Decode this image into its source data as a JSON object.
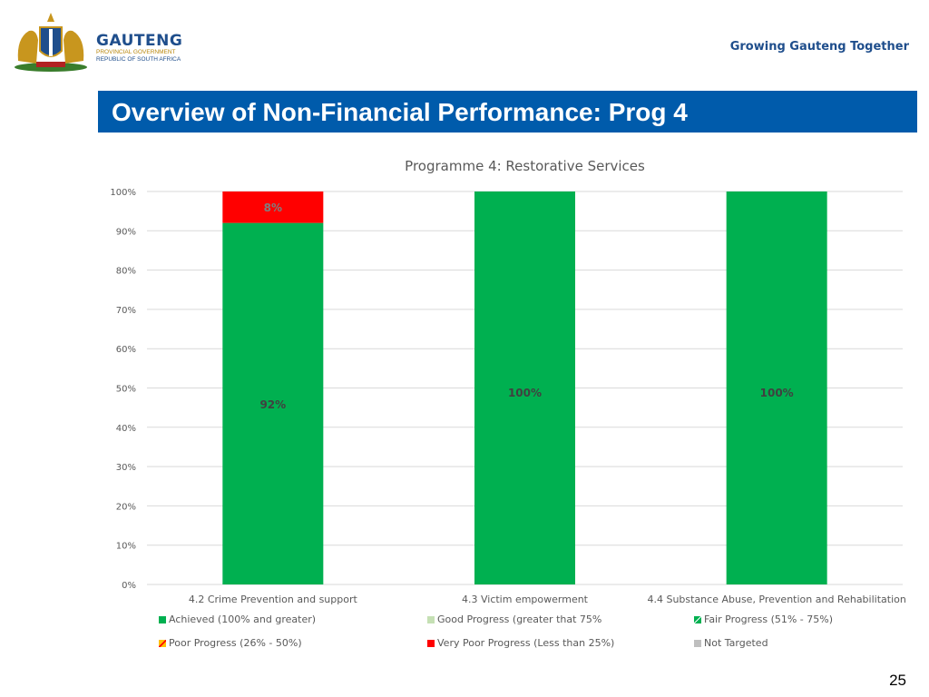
{
  "header": {
    "logo_title": "GAUTENG",
    "logo_sub1": "PROVINCIAL GOVERNMENT",
    "logo_sub2": "REPUBLIC OF SOUTH AFRICA",
    "tagline": "Growing Gauteng Together"
  },
  "slide": {
    "title": "Overview of Non-Financial Performance: Prog 4",
    "page_number": "25"
  },
  "colors": {
    "achieved": "#00b050",
    "very_poor": "#ff0000",
    "good": "#c5e0b4",
    "not_targeted": "#bfbfbf",
    "title_bar": "#005bab"
  },
  "chart_data": {
    "type": "bar",
    "stacked": true,
    "title": "Programme 4: Restorative Services",
    "categories": [
      "4.2 Crime Prevention and support",
      "4.3 Victim empowerment",
      "4.4 Substance Abuse, Prevention and Rehabilitation"
    ],
    "series": [
      {
        "name": "Achieved (100%  and greater)",
        "values": [
          92,
          100,
          100
        ],
        "labels": [
          "92%",
          "100%",
          "100%"
        ]
      },
      {
        "name": "Very Poor Progress (Less than 25%)",
        "values": [
          8,
          0,
          0
        ],
        "labels": [
          "8%",
          "",
          ""
        ]
      }
    ],
    "yticks": [
      "0%",
      "10%",
      "20%",
      "30%",
      "40%",
      "50%",
      "60%",
      "70%",
      "80%",
      "90%",
      "100%"
    ],
    "ylim": [
      0,
      100
    ],
    "grid": true,
    "legend_position": "bottom",
    "legend": [
      "Achieved (100%  and greater)",
      "Good Progress (greater that 75%",
      "Fair Progress (51% - 75%)",
      "Poor Progress (26% - 50%)",
      "Very Poor Progress (Less than 25%)",
      "Not Targeted"
    ]
  }
}
